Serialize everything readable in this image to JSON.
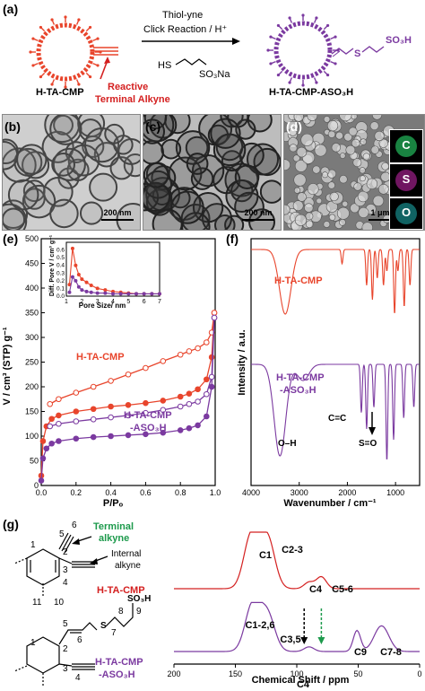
{
  "panels": {
    "a": {
      "label": "(a)",
      "reaction_line1": "Thiol-yne",
      "reaction_line2": "Click Reaction / H⁺",
      "reagent_hs": "HS",
      "reagent_so3na": "SO₃Na",
      "reactive_line1": "Reactive",
      "reactive_line2": "Terminal Alkyne",
      "left_name": "H-TA-CMP",
      "right_name": "H-TA-CMP-ASO₃H",
      "product_s": "S",
      "product_so3h": "SO₃H",
      "colors": {
        "left": "#e8452c",
        "right": "#7b3aa0",
        "reactive": "#d42020"
      }
    },
    "b": {
      "label": "(b)",
      "scale": "200 nm"
    },
    "c": {
      "label": "(c)",
      "scale": "200 nm"
    },
    "d": {
      "label": "(d)",
      "scale": "1 μm",
      "maps": [
        "C",
        "S",
        "O"
      ],
      "map_colors": [
        "#1d9a4c",
        "#a0208a",
        "#1aa3a3"
      ]
    },
    "e": {
      "label": "(e)",
      "ylabel": "V / cm³ (STP) g⁻¹",
      "xlabel": "P/Pₒ",
      "series_labels": [
        "H-TA-CMP",
        "H-TA-CMP",
        "-ASO₃H"
      ],
      "inset_ylabel": "Diff. Pore V / cm³ g⁻¹",
      "inset_xlabel": "Pore Size/ nm"
    },
    "f": {
      "label": "(f)",
      "ylabel": "Intensity / a.u.",
      "xlabel": "Wavenumber / cm⁻¹",
      "top_label": "H-TA-CMP",
      "bottom_label_1": "H-TA-CMP",
      "bottom_label_2": "-ASO₃H",
      "ann_oh": "O–H",
      "ann_cc": "C=C",
      "ann_so": "S=O"
    },
    "g": {
      "label": "(g)",
      "xlabel": "Chemical Shift / ppm",
      "terminal_1": "Terminal",
      "terminal_2": "alkyne",
      "internal_1": "Internal",
      "internal_2": "alkyne",
      "top_name": "H-TA-CMP",
      "bottom_name_1": "H-TA-CMP",
      "bottom_name_2": "-ASO₃H",
      "so3h": "SO₃H",
      "s_atom": "S",
      "nums_top": [
        "1",
        "2",
        "3",
        "4",
        "5",
        "6",
        "11",
        "10"
      ],
      "nums_bottom": [
        "1",
        "2",
        "3",
        "4",
        "5",
        "6",
        "7",
        "8",
        "9"
      ],
      "peaks_top": [
        "C1",
        "C2-3",
        "C4",
        "C5-6"
      ],
      "peaks_bottom": [
        "C1-2,6",
        "C3,5",
        "C4",
        "C9",
        "C7-8"
      ]
    }
  },
  "chart_data": [
    {
      "id": "e",
      "type": "line",
      "xlabel": "P/Pₒ",
      "ylabel": "V / cm³ (STP) g⁻¹",
      "xlim": [
        0,
        1.0
      ],
      "ylim": [
        0,
        500
      ],
      "xticks": [
        0.0,
        0.2,
        0.4,
        0.6,
        0.8,
        1.0
      ],
      "yticks": [
        0,
        50,
        100,
        150,
        200,
        250,
        300,
        350,
        400,
        450,
        500
      ],
      "series": [
        {
          "name": "H-TA-CMP",
          "color": "#e8452c",
          "kind": "adsorption",
          "x": [
            0.0,
            0.01,
            0.03,
            0.06,
            0.1,
            0.2,
            0.3,
            0.4,
            0.5,
            0.6,
            0.7,
            0.8,
            0.85,
            0.9,
            0.95,
            0.98,
            0.995
          ],
          "y": [
            20,
            90,
            120,
            135,
            142,
            150,
            155,
            160,
            163,
            167,
            172,
            180,
            186,
            195,
            215,
            260,
            350
          ]
        },
        {
          "name": "H-TA-CMP",
          "color": "#e8452c",
          "kind": "desorption",
          "x": [
            0.995,
            0.98,
            0.95,
            0.9,
            0.85,
            0.8,
            0.7,
            0.6,
            0.5,
            0.4,
            0.3,
            0.2,
            0.1,
            0.05
          ],
          "y": [
            350,
            310,
            290,
            278,
            272,
            265,
            252,
            238,
            225,
            212,
            200,
            188,
            175,
            165
          ]
        },
        {
          "name": "-ASO₃H",
          "color": "#7b3aa0",
          "kind": "adsorption",
          "x": [
            0.0,
            0.01,
            0.03,
            0.06,
            0.1,
            0.2,
            0.3,
            0.4,
            0.5,
            0.6,
            0.7,
            0.8,
            0.85,
            0.9,
            0.95,
            0.98,
            0.995
          ],
          "y": [
            10,
            55,
            75,
            85,
            90,
            95,
            98,
            100,
            102,
            104,
            107,
            112,
            116,
            122,
            140,
            200,
            340
          ]
        },
        {
          "name": "-ASO₃H",
          "color": "#7b3aa0",
          "kind": "desorption",
          "x": [
            0.995,
            0.98,
            0.95,
            0.9,
            0.85,
            0.8,
            0.7,
            0.6,
            0.5,
            0.4,
            0.3,
            0.2,
            0.1,
            0.05
          ],
          "y": [
            340,
            220,
            185,
            170,
            165,
            160,
            153,
            147,
            142,
            138,
            134,
            130,
            125,
            120
          ]
        }
      ]
    },
    {
      "id": "e-inset",
      "type": "line",
      "xlabel": "Pore Size/ nm",
      "ylabel": "Diff. Pore V / cm³ g⁻¹",
      "xlim": [
        1,
        7
      ],
      "ylim": [
        0,
        0.7
      ],
      "xticks": [
        1,
        2,
        3,
        4,
        5,
        6,
        7
      ],
      "yticks": [
        0.0,
        0.1,
        0.2,
        0.3,
        0.4,
        0.5,
        0.6
      ],
      "series": [
        {
          "name": "H-TA-CMP",
          "color": "#e8452c",
          "x": [
            1.2,
            1.4,
            1.6,
            1.8,
            2.0,
            2.3,
            2.6,
            3.0,
            3.5,
            4.0,
            4.5,
            5.0,
            5.5,
            6.0,
            6.5,
            7.0
          ],
          "y": [
            0.15,
            0.62,
            0.4,
            0.28,
            0.22,
            0.18,
            0.14,
            0.1,
            0.08,
            0.06,
            0.05,
            0.04,
            0.03,
            0.03,
            0.03,
            0.03
          ]
        },
        {
          "name": "-ASO₃H",
          "color": "#7b3aa0",
          "x": [
            1.2,
            1.4,
            1.6,
            1.8,
            2.0,
            2.3,
            2.6,
            3.0,
            3.5,
            4.0,
            4.5,
            5.0,
            5.5,
            6.0,
            6.5,
            7.0
          ],
          "y": [
            0.05,
            0.25,
            0.2,
            0.12,
            0.08,
            0.06,
            0.05,
            0.04,
            0.04,
            0.03,
            0.03,
            0.03,
            0.03,
            0.03,
            0.03,
            0.03
          ]
        }
      ]
    },
    {
      "id": "f",
      "type": "line",
      "xlabel": "Wavenumber / cm⁻¹",
      "ylabel": "Intensity / a.u.",
      "xlim": [
        4000,
        500
      ],
      "xticks": [
        4000,
        3000,
        2000,
        1000
      ],
      "series": [
        {
          "name": "H-TA-CMP",
          "color": "#e8452c",
          "dips": [
            [
              3290,
              0.9
            ],
            [
              2110,
              0.2
            ],
            [
              1600,
              0.5
            ],
            [
              1480,
              0.7
            ],
            [
              1380,
              0.4
            ],
            [
              1250,
              0.5
            ],
            [
              1180,
              0.3
            ],
            [
              1020,
              0.9
            ],
            [
              950,
              0.3
            ],
            [
              820,
              0.8
            ],
            [
              700,
              0.5
            ]
          ]
        },
        {
          "name": "-ASO₃H",
          "color": "#7b3aa0",
          "dips": [
            [
              3400,
              0.85
            ],
            [
              2920,
              0.15
            ],
            [
              1710,
              0.45
            ],
            [
              1600,
              0.6
            ],
            [
              1450,
              0.4
            ],
            [
              1180,
              0.9
            ],
            [
              1040,
              0.7
            ],
            [
              830,
              0.5
            ],
            [
              620,
              0.4
            ]
          ]
        }
      ]
    },
    {
      "id": "g",
      "type": "line",
      "xlabel": "Chemical Shift / ppm",
      "xlim": [
        200,
        0
      ],
      "xticks": [
        200,
        150,
        100,
        50,
        0
      ],
      "series": [
        {
          "name": "H-TA-CMP",
          "color": "#d42020",
          "peaks": [
            [
              137,
              1.0,
              6
            ],
            [
              124,
              0.95,
              6
            ],
            [
              90,
              0.12,
              4
            ],
            [
              80,
              0.22,
              4
            ]
          ]
        },
        {
          "name": "H-TA-CMP-ASO₃H",
          "color": "#7b3aa0",
          "peaks": [
            [
              136,
              1.0,
              6
            ],
            [
              124,
              0.8,
              6
            ],
            [
              90,
              0.1,
              4
            ],
            [
              51,
              0.45,
              3
            ],
            [
              31,
              0.55,
              6
            ]
          ]
        }
      ]
    }
  ]
}
